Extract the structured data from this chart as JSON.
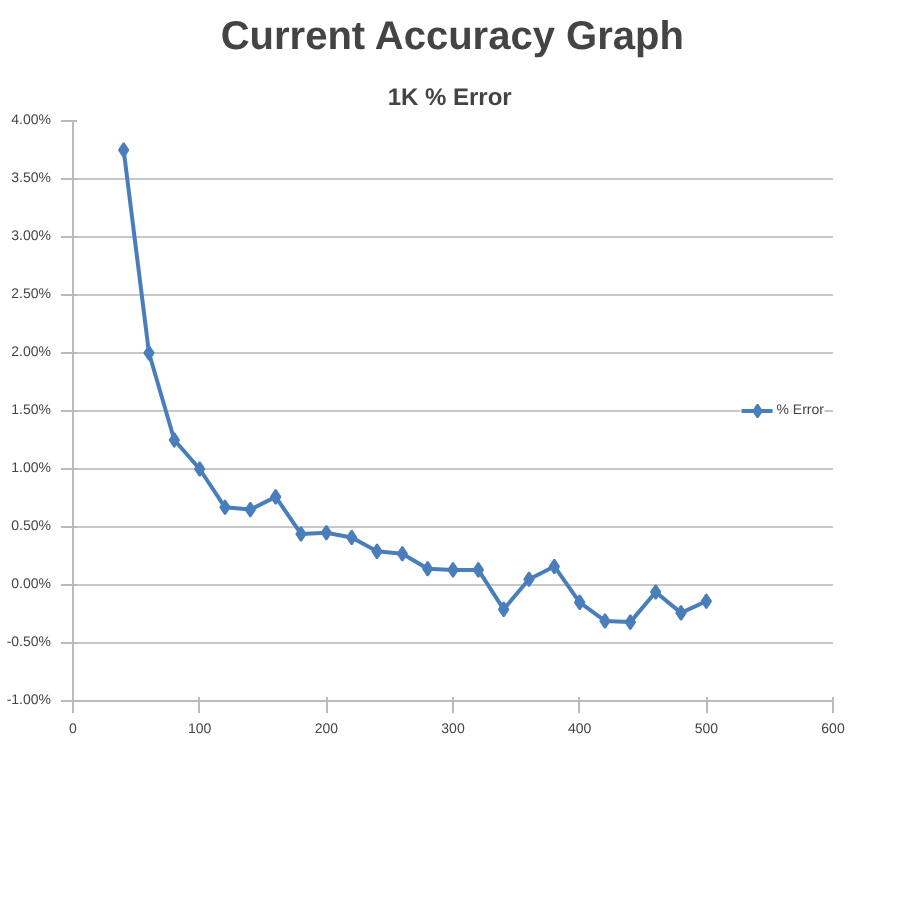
{
  "chart_data": {
    "type": "line",
    "title": "Current Accuracy Graph",
    "subtitle": "1K  % Error",
    "x": [
      40,
      60,
      80,
      100,
      120,
      140,
      160,
      180,
      200,
      220,
      240,
      260,
      280,
      300,
      320,
      340,
      360,
      380,
      400,
      420,
      440,
      460,
      480,
      500
    ],
    "series": [
      {
        "name": "% Error",
        "color": "#4a7ebb",
        "values": [
          3.75,
          2.0,
          1.25,
          1.0,
          0.67,
          0.65,
          0.76,
          0.44,
          0.45,
          0.41,
          0.29,
          0.27,
          0.14,
          0.13,
          0.13,
          -0.21,
          0.05,
          0.16,
          -0.15,
          -0.31,
          -0.32,
          -0.06,
          -0.24,
          -0.14
        ]
      }
    ],
    "xlim": [
      0,
      600
    ],
    "xticks": [
      0,
      100,
      200,
      300,
      400,
      500,
      600
    ],
    "ylim": [
      -1.0,
      4.0
    ],
    "yticks": [
      {
        "value": -1.0,
        "label": "-1.00%"
      },
      {
        "value": -0.5,
        "label": "-0.50%"
      },
      {
        "value": 0.0,
        "label": "0.00%"
      },
      {
        "value": 0.5,
        "label": "0.50%"
      },
      {
        "value": 1.0,
        "label": "1.00%"
      },
      {
        "value": 1.5,
        "label": "1.50%"
      },
      {
        "value": 2.0,
        "label": "2.00%"
      },
      {
        "value": 2.5,
        "label": "2.50%"
      },
      {
        "value": 3.0,
        "label": "3.00%"
      },
      {
        "value": 3.5,
        "label": "3.50%"
      },
      {
        "value": 4.0,
        "label": "4.00%"
      }
    ],
    "grid": "y",
    "legend": "right",
    "marker": "diamond",
    "line_style": "solid"
  }
}
